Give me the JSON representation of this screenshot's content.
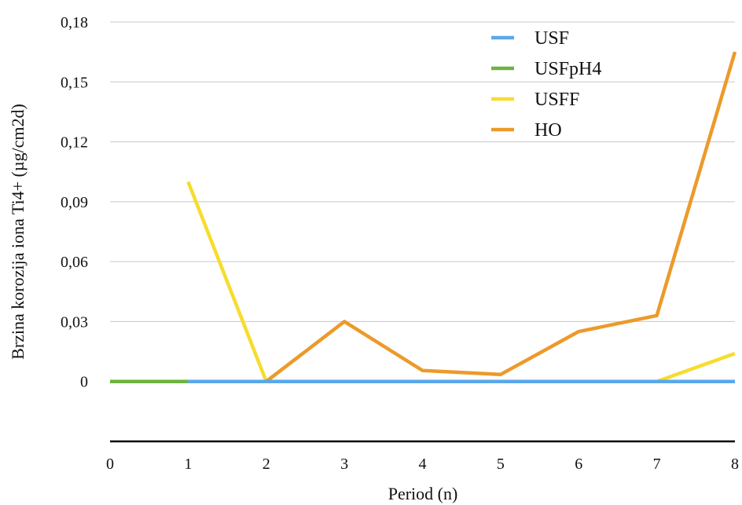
{
  "chart_data": {
    "type": "line",
    "title": "",
    "xlabel": "Period (n)",
    "ylabel": "Brzina korozija iona Ti4+ (µg/cm2d)",
    "x_ticks": [
      "0",
      "1",
      "2",
      "3",
      "4",
      "5",
      "6",
      "7",
      "8"
    ],
    "y_ticks": [
      "0",
      "0,03",
      "0,06",
      "0,09",
      "0,12",
      "0,15",
      "0,18"
    ],
    "xlim": [
      0,
      8
    ],
    "ylim": [
      -0.03,
      0.18
    ],
    "grid": true,
    "legend_position": "top-right",
    "series": [
      {
        "name": "USF",
        "color": "#5aa8ea",
        "x": [
          1,
          2,
          3,
          4,
          5,
          6,
          7,
          8
        ],
        "values": [
          0,
          0,
          0,
          0,
          0,
          0,
          0,
          0
        ]
      },
      {
        "name": "USFpH4",
        "color": "#6db33f",
        "x": [
          0,
          1
        ],
        "values": [
          0,
          0
        ]
      },
      {
        "name": "USFF",
        "color": "#f7dc2f",
        "x": [
          1,
          2,
          3,
          4,
          5,
          6,
          7,
          8
        ],
        "values": [
          0.1,
          0,
          0,
          0,
          0,
          0,
          0,
          0.014
        ]
      },
      {
        "name": "HO",
        "color": "#ec9a2a",
        "x": [
          2,
          3,
          4,
          5,
          6,
          7,
          8
        ],
        "values": [
          0,
          0.03,
          0.0055,
          0.0035,
          0.025,
          0.033,
          0.165
        ]
      }
    ],
    "draw_order": [
      "USFF",
      "HO",
      "USFpH4",
      "USF"
    ]
  }
}
